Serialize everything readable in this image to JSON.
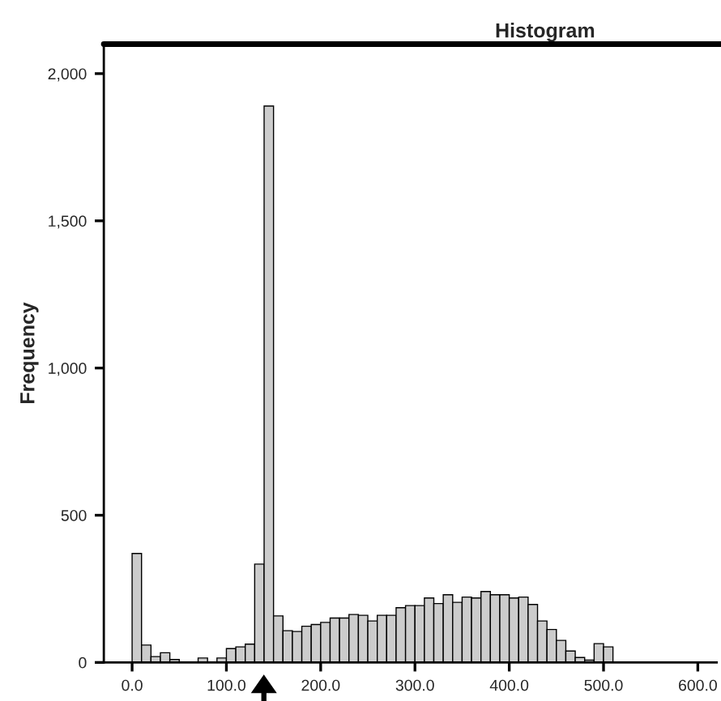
{
  "chart_data": {
    "type": "histogram",
    "title": "Histogram",
    "ylabel": "Frequency",
    "bins": [
      0,
      10,
      20,
      30,
      40,
      50,
      60,
      70,
      80,
      90,
      100,
      110,
      120,
      130,
      140,
      150,
      160,
      170,
      180,
      190,
      200,
      210,
      220,
      230,
      240,
      250,
      260,
      270,
      280,
      290,
      300,
      310,
      320,
      330,
      340,
      350,
      360,
      370,
      380,
      390,
      400,
      410,
      420,
      430,
      440,
      450,
      460,
      470,
      480,
      490,
      500,
      510
    ],
    "values": [
      370,
      59,
      20,
      33,
      10,
      null,
      null,
      15,
      null,
      15,
      47,
      53,
      62,
      334,
      1890,
      158,
      108,
      105,
      123,
      129,
      136,
      151,
      151,
      163,
      160,
      141,
      160,
      160,
      186,
      193,
      193,
      219,
      200,
      230,
      204,
      222,
      219,
      241,
      230,
      230,
      219,
      222,
      197,
      141,
      112,
      75,
      39,
      17,
      8,
      64,
      53
    ],
    "color": "#cccccc",
    "xlim": [
      -30,
      620
    ],
    "ylim": [
      0,
      2100
    ],
    "xticks": [
      {
        "value": 0,
        "label": "0.0"
      },
      {
        "value": 100,
        "label": "100.0"
      },
      {
        "value": 200,
        "label": "200.0"
      },
      {
        "value": 300,
        "label": "300.0"
      },
      {
        "value": 400,
        "label": "400.0"
      },
      {
        "value": 500,
        "label": "500.0"
      },
      {
        "value": 600,
        "label": "600.0"
      }
    ],
    "yticks": [
      0,
      500,
      {
        "value": 1000,
        "label": "1,000"
      },
      {
        "value": 1500,
        "label": "1,500"
      },
      {
        "value": 2000,
        "label": "2,000"
      }
    ],
    "grid": false,
    "legend": false
  }
}
